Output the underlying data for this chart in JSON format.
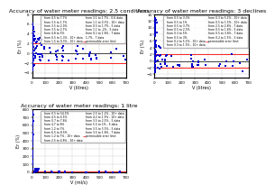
{
  "plots": [
    {
      "title": "Accuracy of water meter readings: 2.5 conditions",
      "xlabel": "V (litres)",
      "ylabel": "Er (%)",
      "xlim": [
        0,
        700
      ],
      "ylim": [
        -5,
        8
      ],
      "yticks": [
        -4,
        -2,
        0,
        2,
        4,
        6,
        8
      ],
      "xticks": [
        0,
        50,
        100,
        150,
        200,
        250,
        300,
        350,
        400,
        450,
        500,
        550,
        600,
        650,
        700
      ],
      "red_line_y": 2,
      "red_line_neg_y": -2,
      "legend_entries_col1": [
        "from 4.5 to 7.7%",
        "from 3.5 to 2.9%",
        "from 4.8 to 5%",
        "from 1.5 to 0.3% - 10+ data",
        "from 1.1 to 0.3% - 10+ data",
        "from 1.1 to -2% - 5 data",
        "1.7% - 7 data"
      ],
      "legend_entries_col2": [
        "from 3.5 to 1.7%",
        "from 3.5 to 2.7%",
        "from 0.5 to 1.3% - 10+ data",
        "from 3.1 to 1.7% - 0.6 data",
        "from 0.5 to 1.7% - 5 data",
        "from 0.1 to 1.8% - 7 data"
      ],
      "legend_has_redline": true
    },
    {
      "title": "Accuracy of water meter readings: 3 declines",
      "xlabel": "V (litres)",
      "ylabel": "Er (%)",
      "xlim": [
        0,
        700
      ],
      "ylim": [
        -5,
        14
      ],
      "yticks": [
        -4,
        -2,
        0,
        2,
        4,
        6,
        8,
        10,
        12,
        14
      ],
      "xticks": [
        0,
        50,
        100,
        150,
        200,
        250,
        300,
        350,
        400,
        450,
        500,
        550,
        600,
        650,
        700
      ],
      "red_line_y": 2,
      "red_line_neg_y": -2,
      "legend_entries_col1": [
        "from 0.5 to 3.3%",
        "from 0.5 to 3.7%",
        "from 0.3 to 5%",
        "from 0.2 to 5.1% - 10+ data",
        "from 0.3 to 5.1% - 10+ data",
        "from 2.5 to 2.8% - 7 data",
        "from 0.5 to 3.8% - 7 data"
      ],
      "legend_entries_col2": [
        "from 0.5 to 1%",
        "from 0.5 to 2.5%",
        "from 0.5 to 3%",
        "from 0.3 to 1.5% - 10+ data",
        "from 0.5 to 1.5% - 10+ data",
        "from 0.5 to 1.8% - 5 data",
        "from 0.2 to 1.5% - 5 data"
      ],
      "legend_has_redline": true
    },
    {
      "title": "Accuracy of water meter readings: 1 litre",
      "xlabel": "V (ml/s)",
      "ylabel": "Er (%)",
      "xlim": [
        0,
        700
      ],
      "ylim": [
        -10,
        800
      ],
      "yticks": [
        0,
        100,
        200,
        300,
        400,
        500,
        600,
        700,
        800
      ],
      "xticks": [
        0,
        50,
        100,
        150,
        200,
        250,
        300,
        350,
        400,
        450,
        500,
        550,
        600,
        650,
        700
      ],
      "red_line_y": 5,
      "red_line_neg_y": -5,
      "legend_entries_col1": [
        "from 0.5 to 54.5%",
        "from 0.7 to 7.8%",
        "from 1.2 to 7%",
        "from 1.2 to 7% - 10+ data",
        "from 2.5 to 1.2% - 10+ data",
        "from 3.5 to 2.5% - 5 data",
        "from 3.5 to 3.5% - 5 data"
      ],
      "legend_entries_col2": [
        "from 4.5 to 4.5%",
        "from 4.7 to 8%",
        "from 6.5 to 8.5%",
        "from 2.5 to 4.8% - 10+ data",
        "from 4.2 to 1.3% - 10+ data",
        "from 5.5 to 1% - 5 data",
        "from 3.5 to 1.8% - 7 data"
      ],
      "legend_has_redline": true
    }
  ],
  "scatter_color": "#0000CC",
  "scatter_marker": "s",
  "scatter_size": 2,
  "red_color": "#FF0000",
  "black_color": "#000000",
  "background_color": "#FFFFFF",
  "grid_color": "#CCCCCC",
  "title_fontsize": 4.5,
  "axis_fontsize": 3.5,
  "tick_fontsize": 3.0,
  "legend_fontsize": 2.2
}
